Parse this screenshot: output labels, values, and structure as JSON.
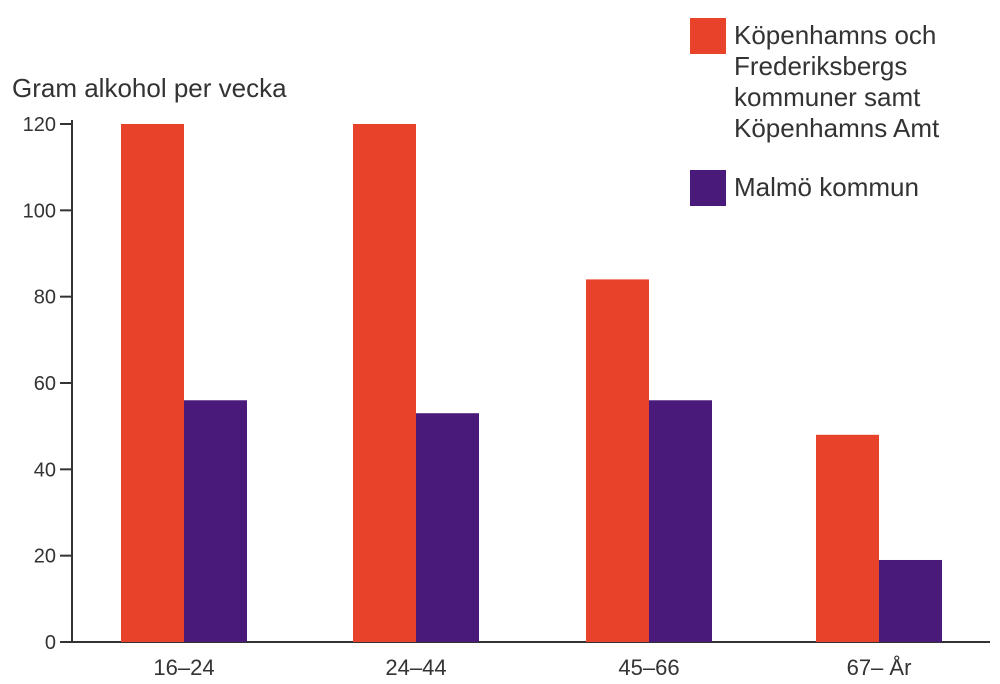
{
  "chart_data": {
    "type": "bar",
    "ylabel": "Gram alkohol per vecka",
    "xlabel": "",
    "categories": [
      "16–24",
      "24–44",
      "45–66",
      "67– År"
    ],
    "series": [
      {
        "name": "Köpenhamns och Frederiksbergs kommuner samt Köpenhamns Amt",
        "name_lines": [
          "Köpenhamns och",
          "Frederiksbergs",
          "kommuner samt",
          "Köpenhamns Amt"
        ],
        "color": "#e8432a",
        "values": [
          120,
          120,
          84,
          48
        ]
      },
      {
        "name": "Malmö kommun",
        "name_lines": [
          "Malmö kommun"
        ],
        "color": "#4a1a7a",
        "values": [
          56,
          53,
          56,
          19
        ]
      }
    ],
    "yticks": [
      0,
      20,
      40,
      60,
      80,
      100,
      120
    ],
    "ylim": [
      0,
      120
    ],
    "grid": false,
    "legend": "top-right"
  }
}
